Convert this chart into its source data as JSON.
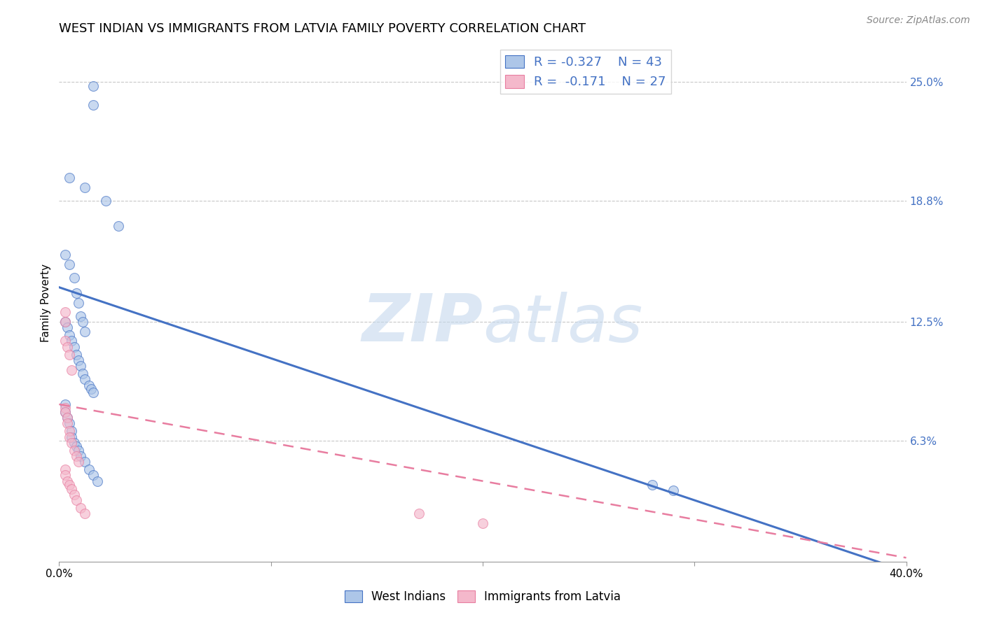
{
  "title": "WEST INDIAN VS IMMIGRANTS FROM LATVIA FAMILY POVERTY CORRELATION CHART",
  "source": "Source: ZipAtlas.com",
  "ylabel": "Family Poverty",
  "ytick_labels": [
    "25.0%",
    "18.8%",
    "12.5%",
    "6.3%"
  ],
  "ytick_values": [
    0.25,
    0.188,
    0.125,
    0.063
  ],
  "xlim": [
    0.0,
    0.4
  ],
  "ylim": [
    0.0,
    0.27
  ],
  "blue_scatter_x": [
    0.016,
    0.016,
    0.005,
    0.012,
    0.022,
    0.028,
    0.003,
    0.005,
    0.007,
    0.008,
    0.009,
    0.01,
    0.011,
    0.012,
    0.003,
    0.004,
    0.005,
    0.006,
    0.007,
    0.008,
    0.009,
    0.01,
    0.011,
    0.012,
    0.014,
    0.015,
    0.016,
    0.003,
    0.003,
    0.004,
    0.005,
    0.006,
    0.006,
    0.007,
    0.008,
    0.009,
    0.01,
    0.012,
    0.014,
    0.016,
    0.018,
    0.28,
    0.29
  ],
  "blue_scatter_y": [
    0.248,
    0.238,
    0.2,
    0.195,
    0.188,
    0.175,
    0.16,
    0.155,
    0.148,
    0.14,
    0.135,
    0.128,
    0.125,
    0.12,
    0.125,
    0.122,
    0.118,
    0.115,
    0.112,
    0.108,
    0.105,
    0.102,
    0.098,
    0.095,
    0.092,
    0.09,
    0.088,
    0.082,
    0.078,
    0.075,
    0.072,
    0.068,
    0.065,
    0.062,
    0.06,
    0.058,
    0.055,
    0.052,
    0.048,
    0.045,
    0.042,
    0.04,
    0.037
  ],
  "pink_scatter_x": [
    0.003,
    0.003,
    0.003,
    0.004,
    0.005,
    0.006,
    0.003,
    0.003,
    0.004,
    0.004,
    0.005,
    0.005,
    0.006,
    0.007,
    0.008,
    0.009,
    0.003,
    0.003,
    0.004,
    0.005,
    0.006,
    0.007,
    0.008,
    0.01,
    0.012,
    0.17,
    0.2
  ],
  "pink_scatter_y": [
    0.13,
    0.125,
    0.115,
    0.112,
    0.108,
    0.1,
    0.08,
    0.078,
    0.075,
    0.072,
    0.068,
    0.065,
    0.062,
    0.058,
    0.055,
    0.052,
    0.048,
    0.045,
    0.042,
    0.04,
    0.038,
    0.035,
    0.032,
    0.028,
    0.025,
    0.025,
    0.02
  ],
  "blue_line_x": [
    0.0,
    0.4
  ],
  "blue_line_y": [
    0.143,
    -0.005
  ],
  "pink_line_x": [
    0.0,
    0.4
  ],
  "pink_line_y": [
    0.082,
    0.002
  ],
  "watermark_zip": "ZIP",
  "watermark_atlas": "atlas",
  "blue_color": "#adc6e8",
  "blue_line_color": "#4472c4",
  "pink_color": "#f4b8cb",
  "pink_line_color": "#e87da0",
  "grid_color": "#c8c8c8",
  "background_color": "#ffffff",
  "title_fontsize": 13,
  "axis_label_fontsize": 11,
  "tick_fontsize": 11,
  "scatter_size": 100,
  "scatter_alpha": 0.65
}
